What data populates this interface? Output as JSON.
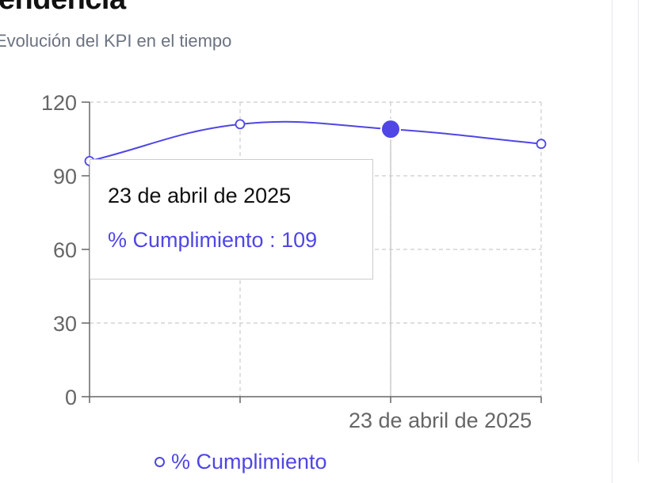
{
  "card": {
    "title": "Tendencia",
    "subtitle": "Evolución del KPI en el tiempo"
  },
  "chart_data": {
    "type": "line",
    "x_labels": [
      "",
      "",
      "23 de abril de 2025",
      ""
    ],
    "x_tick_label": "23 de abril de 2025",
    "series": [
      {
        "name": "% Cumplimiento",
        "values": [
          96,
          111,
          109,
          103
        ],
        "color": "#4f46e5"
      }
    ],
    "ylim": [
      0,
      120
    ],
    "yticks": [
      0,
      30,
      60,
      90,
      120
    ],
    "grid": true,
    "active_index": 2,
    "legend_position": "bottom"
  },
  "tooltip": {
    "date": "23 de abril de 2025",
    "series_label": "% Cumplimiento",
    "separator": " : ",
    "value": "109"
  },
  "legend": {
    "label": "% Cumplimiento"
  },
  "colors": {
    "accent": "#4f46e5",
    "grid": "#cccccc",
    "axis": "#666666"
  }
}
